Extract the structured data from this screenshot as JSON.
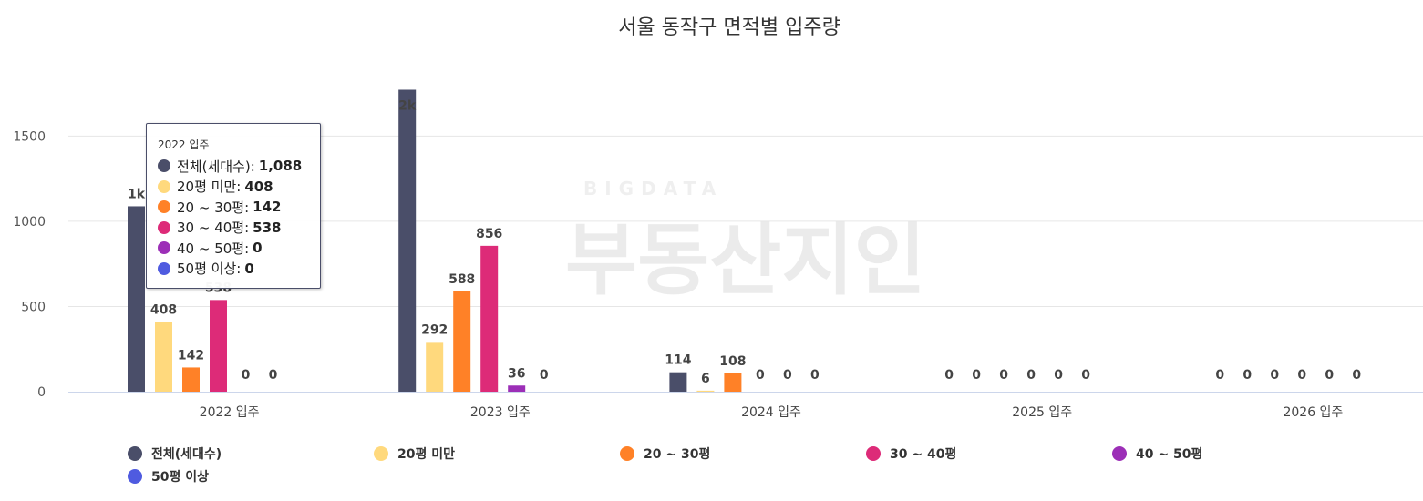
{
  "title": "서울 동작구 면적별 입주량",
  "watermark": {
    "small": "BIGDATA",
    "big": "부동산지인"
  },
  "colors": {
    "total": "#4a4e69",
    "under20": "#ffd97d",
    "p20_30": "#ff8127",
    "p30_40": "#dd2b78",
    "p40_50": "#9c2fb7",
    "over50": "#4f5be0",
    "grid": "#e6e6e6",
    "axis": "#ccd6eb"
  },
  "chart_data": {
    "type": "bar",
    "title": "서울 동작구 면적별 입주량",
    "categories": [
      "2022 입주",
      "2023 입주",
      "2024 입주",
      "2025 입주",
      "2026 입주"
    ],
    "series": [
      {
        "name": "전체(세대수)",
        "color": "#4a4e69",
        "values": [
          1088,
          1772,
          114,
          0,
          0
        ],
        "labels": [
          "1k",
          "2k",
          "114",
          "0",
          "0"
        ]
      },
      {
        "name": "20평 미만",
        "color": "#ffd97d",
        "values": [
          408,
          292,
          6,
          0,
          0
        ],
        "labels": [
          "408",
          "292",
          "6",
          "0",
          "0"
        ]
      },
      {
        "name": "20 ~ 30평",
        "color": "#ff8127",
        "values": [
          142,
          588,
          108,
          0,
          0
        ],
        "labels": [
          "142",
          "588",
          "108",
          "0",
          "0"
        ]
      },
      {
        "name": "30 ~ 40평",
        "color": "#dd2b78",
        "values": [
          538,
          856,
          0,
          0,
          0
        ],
        "labels": [
          "538",
          "856",
          "0",
          "0",
          "0"
        ]
      },
      {
        "name": "40 ~ 50평",
        "color": "#9c2fb7",
        "values": [
          0,
          36,
          0,
          0,
          0
        ],
        "labels": [
          "0",
          "36",
          "0",
          "0",
          "0"
        ]
      },
      {
        "name": "50평 이상",
        "color": "#4f5be0",
        "values": [
          0,
          0,
          0,
          0,
          0
        ],
        "labels": [
          "0",
          "0",
          "0",
          "0",
          "0"
        ]
      }
    ],
    "yticks": [
      0,
      500,
      1000,
      1500
    ],
    "ylim": [
      0,
      1780
    ],
    "grid": true,
    "legend": "bottom"
  },
  "tooltip": {
    "title": "2022 입주",
    "rows": [
      {
        "label": "전체(세대수):",
        "value": "1,088",
        "color": "#4a4e69"
      },
      {
        "label": "20평 미만:",
        "value": "408",
        "color": "#ffd97d"
      },
      {
        "label": "20 ~ 30평:",
        "value": "142",
        "color": "#ff8127"
      },
      {
        "label": "30 ~ 40평:",
        "value": "538",
        "color": "#dd2b78"
      },
      {
        "label": "40 ~ 50평:",
        "value": "0",
        "color": "#9c2fb7"
      },
      {
        "label": "50평 이상:",
        "value": "0",
        "color": "#4f5be0"
      }
    ]
  }
}
